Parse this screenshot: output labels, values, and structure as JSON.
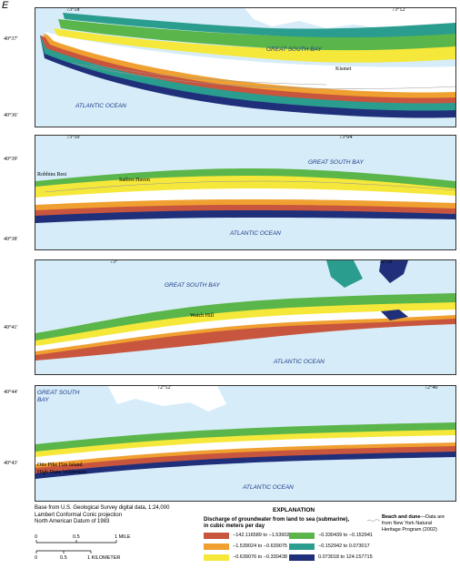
{
  "panel_letter": "E",
  "colors": {
    "water": "#d6ecf8",
    "land": "#ffffff",
    "c1": "#c8553d",
    "c2": "#f0a030",
    "c3": "#f5e83a",
    "c4": "#5ab54a",
    "c5": "#2a9d8f",
    "c6": "#1f2f7a"
  },
  "panels": [
    {
      "ticks_top": [
        "73°18′",
        "73°12′"
      ],
      "lat_labels": [
        "40°37′",
        "40°36′"
      ],
      "water_labels": [
        "GREAT SOUTH BAY",
        "ATLANTIC OCEAN"
      ],
      "places": [
        "Kismet"
      ]
    },
    {
      "ticks_top": [
        "73°10′",
        "73°04′"
      ],
      "lat_labels": [
        "40°39′",
        "40°38′"
      ],
      "water_labels": [
        "GREAT SOUTH BAY",
        "ATLANTIC OCEAN"
      ],
      "places": [
        "Robbins Rest",
        "Sailors Haven"
      ]
    },
    {
      "ticks_top": [
        "73°",
        "72°58′"
      ],
      "lat_labels": [
        "40°41′"
      ],
      "water_labels": [
        "GREAT SOUTH BAY",
        "ATLANTIC OCEAN"
      ],
      "places": [
        "Watch Hill"
      ]
    },
    {
      "ticks_top": [
        "72°52′",
        "72°46′"
      ],
      "lat_labels": [
        "40°44′",
        "40°43′"
      ],
      "water_labels": [
        "GREAT SOUTH",
        "BAY",
        "ATLANTIC OCEAN"
      ],
      "places": [
        "Otis Pike Fire Island",
        "High Dune Wilderness"
      ]
    }
  ],
  "credits": [
    "Base from U.S. Geological Survey digital data, 1:24,000",
    "Lambert Conformal Conic projection",
    "North American Datum of 1983"
  ],
  "explanation": {
    "title": "EXPLANATION",
    "subtitle_1": "Discharge of groundwater from land to sea (submarine),",
    "subtitle_2": "in cubic meters per day",
    "items": [
      {
        "label": "−142.116589 to −1.539023",
        "color": "#c8553d"
      },
      {
        "label": "−1.539024 to −0.639075",
        "color": "#f0a030"
      },
      {
        "label": "−0.639076 to −0.330438",
        "color": "#f5e83a"
      },
      {
        "label": "−0.330439 to −0.152941",
        "color": "#5ab54a"
      },
      {
        "label": "−0.152942 to 0.073017",
        "color": "#2a9d8f"
      },
      {
        "label": "0.073018 to 124.157715",
        "color": "#1f2f7a"
      }
    ],
    "beach_title": "Beach and dune",
    "beach_text_1": "—Data are",
    "beach_text_2": "from New York Natural",
    "beach_text_3": "Heritage Program (2002)"
  },
  "scale": {
    "mile_labels": [
      "0",
      "0.5",
      "1 MILE"
    ],
    "km_labels": [
      "0",
      "0.5",
      "1 KILOMETER"
    ]
  }
}
